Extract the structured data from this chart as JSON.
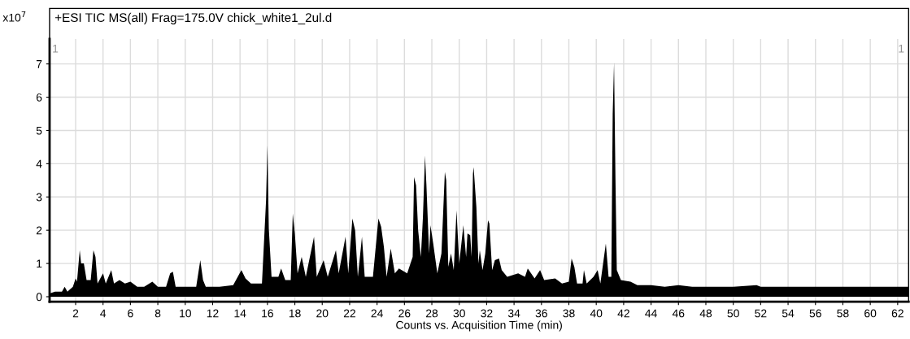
{
  "chart_data": {
    "type": "area",
    "title": "+ESI TIC MS(all) Frag=175.0V chick_white1_2ul.d",
    "xlabel": "Counts vs. Acquisition Time (min)",
    "ylabel": "x10$^{7}$",
    "annotations": [
      "1",
      "1"
    ],
    "x": [
      0.1,
      0.5,
      1.0,
      1.2,
      1.4,
      1.8,
      2.0,
      2.1,
      2.3,
      2.4,
      2.6,
      2.8,
      3.1,
      3.3,
      3.45,
      3.6,
      4.0,
      4.2,
      4.6,
      4.8,
      5.2,
      5.6,
      6.0,
      6.5,
      7.0,
      7.6,
      8.0,
      8.6,
      8.9,
      9.1,
      9.3,
      10.0,
      10.8,
      11.1,
      11.3,
      11.5,
      12.5,
      13.5,
      14.1,
      14.4,
      14.8,
      15.6,
      15.9,
      16.0,
      16.1,
      16.3,
      16.8,
      17.0,
      17.3,
      17.7,
      17.85,
      18.0,
      18.2,
      18.5,
      18.8,
      19.3,
      19.4,
      19.6,
      20.1,
      20.4,
      21.0,
      21.2,
      21.7,
      21.9,
      22.2,
      22.4,
      22.6,
      22.9,
      23.1,
      23.7,
      24.1,
      24.3,
      24.5,
      24.7,
      25.0,
      25.3,
      25.6,
      26.2,
      26.6,
      26.7,
      26.85,
      27.0,
      27.2,
      27.35,
      27.5,
      27.6,
      27.8,
      27.9,
      28.1,
      28.4,
      28.7,
      28.95,
      29.05,
      29.2,
      29.4,
      29.6,
      29.8,
      30.0,
      30.3,
      30.5,
      30.6,
      30.8,
      30.9,
      31.0,
      31.05,
      31.25,
      31.4,
      31.5,
      31.7,
      31.9,
      32.1,
      32.2,
      32.4,
      32.6,
      32.9,
      33.1,
      33.5,
      34.3,
      34.8,
      35.0,
      35.5,
      35.9,
      36.2,
      37.0,
      37.5,
      38.0,
      38.2,
      38.4,
      38.6,
      39.0,
      39.1,
      39.3,
      39.8,
      40.1,
      40.3,
      40.7,
      40.9,
      41.1,
      41.2,
      41.3,
      41.4,
      41.5,
      41.8,
      42.5,
      43.0,
      44.0,
      45.0,
      46.0,
      47.0,
      48.0,
      50.0,
      51.7,
      52.0,
      55.0,
      58.0,
      60.0,
      62.8
    ],
    "values": [
      0.1,
      0.15,
      0.15,
      0.3,
      0.15,
      0.3,
      0.55,
      0.45,
      1.4,
      1.0,
      1.0,
      0.5,
      0.5,
      1.4,
      1.2,
      0.4,
      0.7,
      0.4,
      0.8,
      0.4,
      0.5,
      0.4,
      0.45,
      0.3,
      0.3,
      0.45,
      0.3,
      0.3,
      0.7,
      0.75,
      0.3,
      0.3,
      0.3,
      1.1,
      0.5,
      0.3,
      0.3,
      0.35,
      0.8,
      0.55,
      0.4,
      0.4,
      2.9,
      4.55,
      2.05,
      0.6,
      0.6,
      0.85,
      0.5,
      0.5,
      2.5,
      1.9,
      0.7,
      1.2,
      0.6,
      1.6,
      1.8,
      0.6,
      1.1,
      0.6,
      1.4,
      0.7,
      1.8,
      0.7,
      2.35,
      2.0,
      0.6,
      1.8,
      0.6,
      0.6,
      2.35,
      2.1,
      1.5,
      0.6,
      1.45,
      0.7,
      0.85,
      0.7,
      1.2,
      3.6,
      3.35,
      2.0,
      1.2,
      2.4,
      4.25,
      3.4,
      1.3,
      2.15,
      1.6,
      0.7,
      1.3,
      3.75,
      3.5,
      0.9,
      1.3,
      0.8,
      2.6,
      1.0,
      2.15,
      1.2,
      1.9,
      1.85,
      1.2,
      3.7,
      3.9,
      2.7,
      1.0,
      1.4,
      0.8,
      1.3,
      2.3,
      2.2,
      0.8,
      1.1,
      1.15,
      0.8,
      0.6,
      0.7,
      0.6,
      0.85,
      0.55,
      0.8,
      0.5,
      0.55,
      0.4,
      0.45,
      1.15,
      0.9,
      0.4,
      0.4,
      0.8,
      0.4,
      0.6,
      0.8,
      0.4,
      1.6,
      0.6,
      0.6,
      5.5,
      7.05,
      3.6,
      0.8,
      0.5,
      0.45,
      0.35,
      0.35,
      0.3,
      0.35,
      0.3,
      0.3,
      0.3,
      0.35,
      0.3,
      0.3,
      0.3,
      0.3,
      0.3
    ],
    "color": "#000000",
    "xlim": [
      0.1,
      62.8
    ],
    "xticks": [
      2,
      4,
      6,
      8,
      10,
      12,
      14,
      16,
      18,
      20,
      22,
      24,
      26,
      28,
      30,
      32,
      34,
      36,
      38,
      40,
      42,
      44,
      46,
      48,
      50,
      52,
      54,
      56,
      58,
      60,
      62
    ],
    "ylim": [
      -0.15,
      7.75
    ],
    "yticks": [
      0,
      1,
      2,
      3,
      4,
      5,
      6,
      7
    ],
    "grid": true
  }
}
